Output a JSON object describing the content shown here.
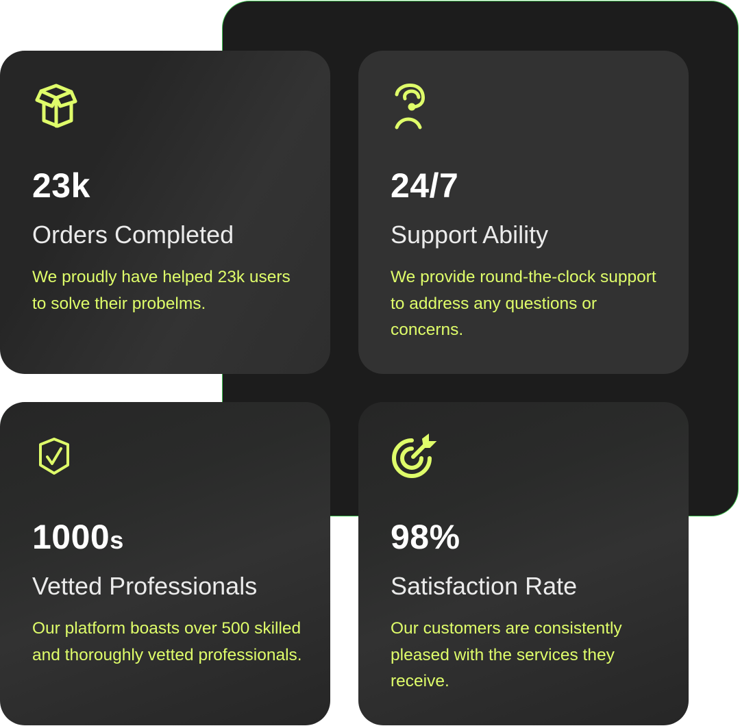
{
  "accent_color": "#dffd6a",
  "border_color": "#3fc24f",
  "cards": [
    {
      "icon": "box-icon",
      "number": "23k",
      "number_suffix": "",
      "title": "Orders Completed",
      "description": "We proudly have helped 23k users to solve their probelms."
    },
    {
      "icon": "headset-support-icon",
      "number": "24/7",
      "number_suffix": "",
      "title": "Support Ability",
      "description": "We provide round-the-clock support to address any questions or concerns."
    },
    {
      "icon": "shield-check-icon",
      "number": "1000",
      "number_suffix": "s",
      "title": "Vetted Professionals",
      "description": "Our platform boasts over 500 skilled and thoroughly vetted professionals."
    },
    {
      "icon": "target-arrow-icon",
      "number": "98%",
      "number_suffix": "",
      "title": "Satisfaction Rate",
      "description": "Our customers are consistently pleased with the services they receive."
    }
  ]
}
